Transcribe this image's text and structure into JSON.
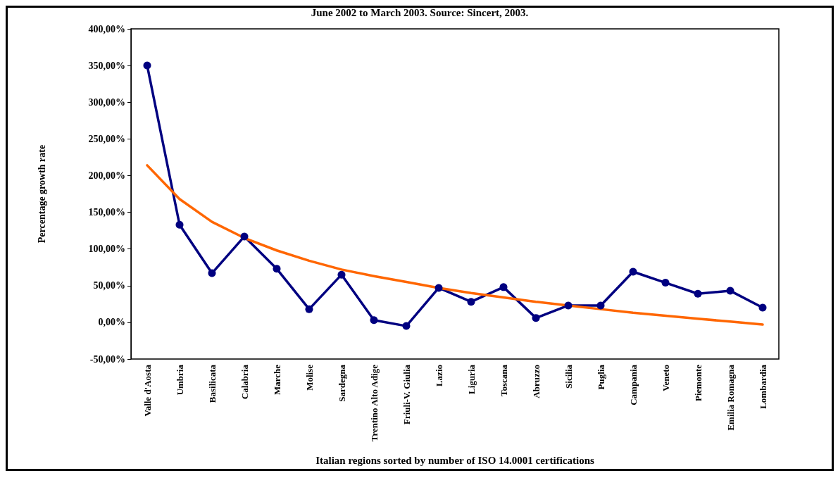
{
  "chart_data": {
    "type": "line",
    "title": "June 2002 to March 2003. Source: Sincert, 2003.",
    "xlabel": "Italian regions sorted by number of ISO 14.0001 certifications",
    "ylabel": "Percentage growth rate",
    "categories": [
      "Valle d'Aosta",
      "Umbria",
      "Basilicata",
      "Calabria",
      "Marche",
      "Molise",
      "Sardegna",
      "Trentino Alto Adige",
      "Friuli-V. Giulia",
      "Lazio",
      "Liguria",
      "Toscana",
      "Abruzzo",
      "Sicilia",
      "Puglia",
      "Campania",
      "Veneto",
      "Piemonte",
      "Emilia Romagna",
      "Lombardia"
    ],
    "series": [
      {
        "color": "#000080",
        "values": [
          350,
          133,
          67,
          117,
          73,
          18,
          65,
          3,
          -5,
          47,
          28,
          48,
          6,
          23,
          23,
          69,
          54,
          39,
          43,
          20
        ]
      },
      {
        "color": "#ff6600",
        "marker": "none",
        "values": [
          214,
          168,
          137,
          115,
          98,
          84,
          72,
          63,
          55,
          47,
          40,
          34,
          28,
          23,
          18,
          13,
          9,
          5,
          1,
          -3
        ]
      }
    ],
    "ylim": [
      -50,
      400
    ],
    "yticks": [
      {
        "value": -50,
        "label": "-50,00%"
      },
      {
        "value": 0,
        "label": "0,00%"
      },
      {
        "value": 50,
        "label": "50,00%"
      },
      {
        "value": 100,
        "label": "100,00%"
      },
      {
        "value": 150,
        "label": "150,00%"
      },
      {
        "value": 200,
        "label": "200,00%"
      },
      {
        "value": 250,
        "label": "250,00%"
      },
      {
        "value": 300,
        "label": "300,00%"
      },
      {
        "value": 350,
        "label": "350,00%"
      },
      {
        "value": 400,
        "label": "400,00%"
      }
    ],
    "grid": false,
    "marker": "circle",
    "line_style": "solid"
  }
}
